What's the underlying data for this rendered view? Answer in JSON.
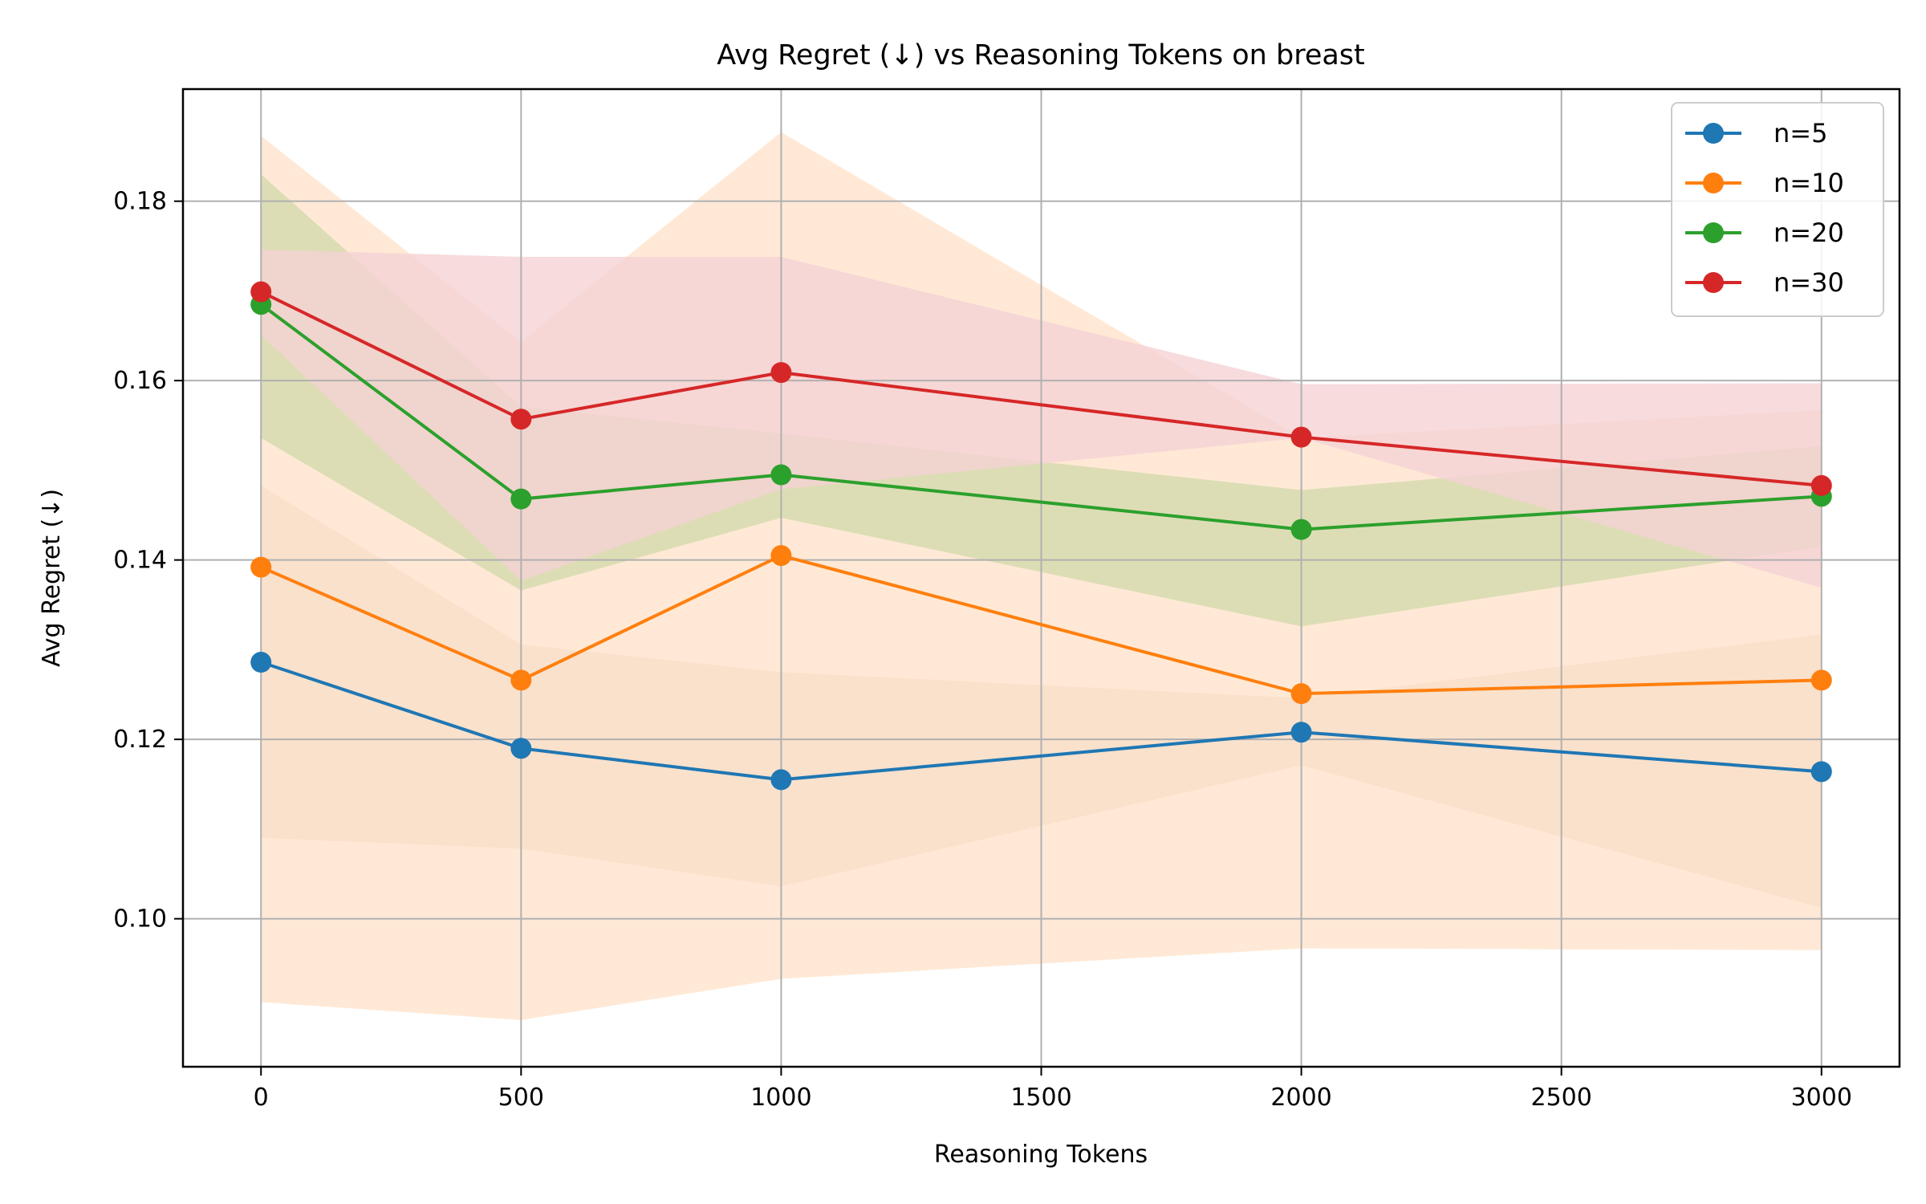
{
  "chart_data": {
    "type": "line",
    "title": "Avg Regret (↓) vs Reasoning Tokens on breast",
    "xlabel": "Reasoning Tokens",
    "ylabel": "Avg Regret (↓)",
    "x": [
      0,
      500,
      1000,
      2000,
      3000
    ],
    "xlim": [
      -150,
      3150
    ],
    "ylim": [
      0.0835,
      0.1925
    ],
    "xticks": [
      0,
      500,
      1000,
      1500,
      2000,
      2500,
      3000
    ],
    "xtick_labels": [
      "0",
      "500",
      "1000",
      "1500",
      "2000",
      "2500",
      "3000"
    ],
    "yticks": [
      0.1,
      0.12,
      0.14,
      0.16,
      0.18
    ],
    "ytick_labels": [
      "0.10",
      "0.12",
      "0.14",
      "0.16",
      "0.18"
    ],
    "grid": true,
    "legend_position": "upper-right",
    "series": [
      {
        "name": "n=5",
        "color": "#1f77b4",
        "band_color": "#dbcdc0",
        "values": [
          0.1286,
          0.119,
          0.1155,
          0.1208,
          0.1164
        ],
        "lower": [
          0.109,
          0.1078,
          0.1036,
          0.1171,
          0.1012
        ],
        "upper": [
          0.1483,
          0.1306,
          0.1275,
          0.1246,
          0.1317
        ]
      },
      {
        "name": "n=10",
        "color": "#ff7f0e",
        "band_color": "#ffe3cc",
        "values": [
          0.1392,
          0.1266,
          0.1405,
          0.1251,
          0.1266
        ],
        "lower": [
          0.0907,
          0.0887,
          0.0933,
          0.0967,
          0.0965
        ],
        "upper": [
          0.1873,
          0.1643,
          0.1877,
          0.1536,
          0.1567
        ]
      },
      {
        "name": "n=20",
        "color": "#2ca02c",
        "band_color": "#d4d9ad",
        "values": [
          0.1685,
          0.1468,
          0.1495,
          0.1434,
          0.1471
        ],
        "lower": [
          0.1536,
          0.1366,
          0.1447,
          0.1326,
          0.1415
        ],
        "upper": [
          0.183,
          0.1571,
          0.1541,
          0.1478,
          0.1527
        ]
      },
      {
        "name": "n=30",
        "color": "#d62728",
        "band_color": "#f5d2d4",
        "values": [
          0.1699,
          0.1557,
          0.1609,
          0.1537,
          0.1483
        ],
        "lower": [
          0.1651,
          0.1377,
          0.1479,
          0.1536,
          0.1369
        ],
        "upper": [
          0.1746,
          0.1738,
          0.1738,
          0.1596,
          0.1597
        ]
      }
    ]
  }
}
